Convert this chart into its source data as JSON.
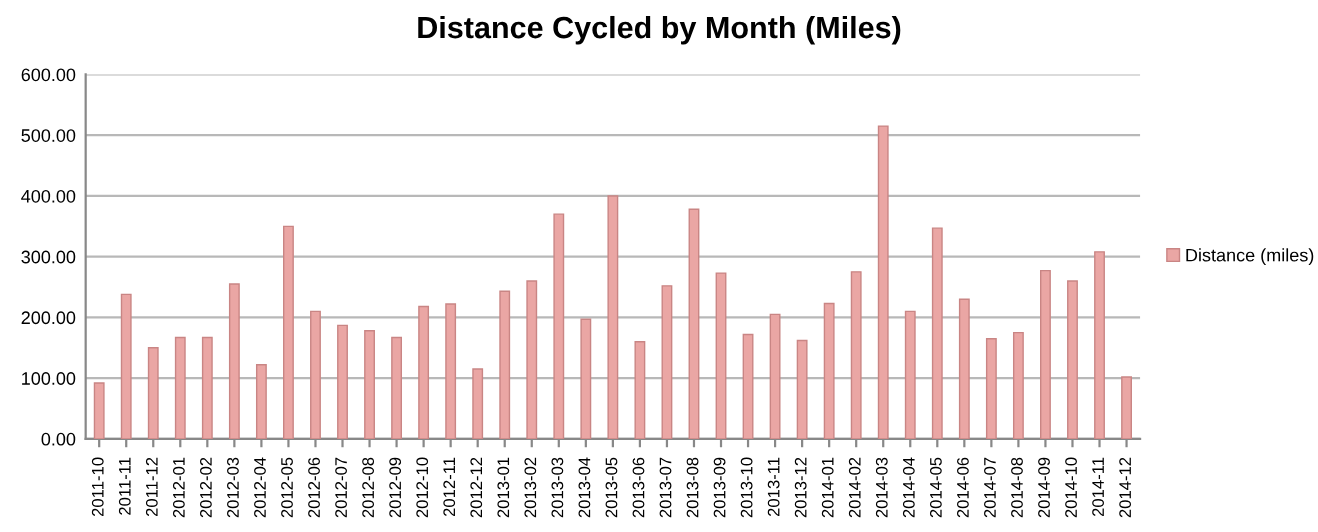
{
  "chart_data": {
    "type": "bar",
    "title": "Distance Cycled by Month (Miles)",
    "categories": [
      "2011-10",
      "2011-11",
      "2011-12",
      "2012-01",
      "2012-02",
      "2012-03",
      "2012-04",
      "2012-05",
      "2012-06",
      "2012-07",
      "2012-08",
      "2012-09",
      "2012-10",
      "2012-11",
      "2012-12",
      "2013-01",
      "2013-02",
      "2013-03",
      "2013-04",
      "2013-05",
      "2013-06",
      "2013-07",
      "2013-08",
      "2013-09",
      "2013-10",
      "2013-11",
      "2013-12",
      "2014-01",
      "2014-02",
      "2014-03",
      "2014-04",
      "2014-05",
      "2014-06",
      "2014-07",
      "2014-08",
      "2014-09",
      "2014-10",
      "2014-11",
      "2014-12"
    ],
    "series": [
      {
        "name": "Distance (miles)",
        "color": "#eaa6a4",
        "values": [
          92,
          238,
          150,
          167,
          167,
          255,
          122,
          350,
          210,
          187,
          178,
          167,
          218,
          222,
          115,
          243,
          260,
          370,
          197,
          400,
          160,
          252,
          378,
          273,
          172,
          205,
          162,
          223,
          275,
          515,
          210,
          347,
          230,
          165,
          175,
          277,
          260,
          308,
          102
        ]
      }
    ],
    "ylim": [
      0,
      600
    ],
    "yticks": [
      {
        "value": 0,
        "label": "0.00"
      },
      {
        "value": 100,
        "label": "100.00"
      },
      {
        "value": 200,
        "label": "200.00"
      },
      {
        "value": 300,
        "label": "300.00"
      },
      {
        "value": 400,
        "label": "400.00"
      },
      {
        "value": 500,
        "label": "500.00"
      },
      {
        "value": 600,
        "label": "600.00"
      }
    ],
    "grid": "y",
    "legend": "right"
  }
}
